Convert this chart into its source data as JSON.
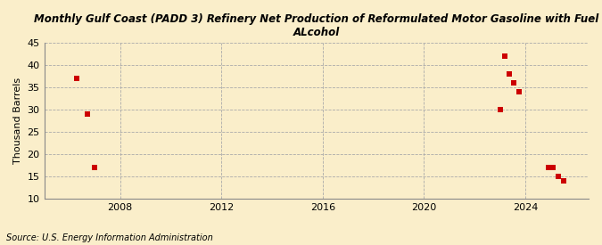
{
  "title": "Monthly Gulf Coast (PADD 3) Refinery Net Production of Reformulated Motor Gasoline with Fuel\nALcohol",
  "ylabel": "Thousand Barrels",
  "source": "Source: U.S. Energy Information Administration",
  "background_color": "#faeeca",
  "plot_background_color": "#faeeca",
  "point_color": "#cc0000",
  "marker": "s",
  "marker_size": 16,
  "ylim": [
    10,
    45
  ],
  "yticks": [
    10,
    15,
    20,
    25,
    30,
    35,
    40,
    45
  ],
  "xlim_min": 2005.0,
  "xlim_max": 2026.5,
  "xticks": [
    2008,
    2012,
    2016,
    2020,
    2024
  ],
  "data_x": [
    2006.3,
    2006.7,
    2007.0,
    2023.0,
    2023.2,
    2023.35,
    2023.55,
    2023.75,
    2024.9,
    2025.1,
    2025.3,
    2025.5
  ],
  "data_y": [
    37,
    29,
    17,
    30,
    42,
    38,
    36,
    34,
    17,
    17,
    15,
    14
  ]
}
